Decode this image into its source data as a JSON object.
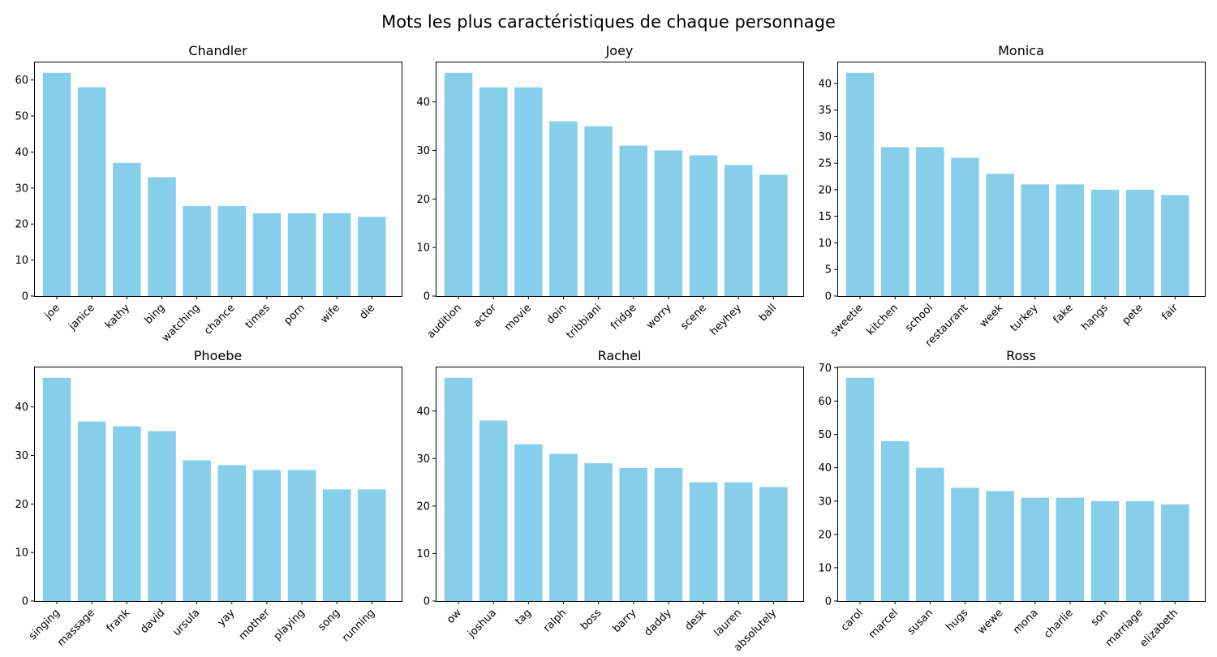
{
  "figure_title": "Mots les plus caractéristiques de chaque personnage",
  "bar_color": "#87CEEB",
  "chart_data": [
    {
      "type": "bar",
      "title": "Chandler",
      "categories": [
        "joe",
        "janice",
        "kathy",
        "bing",
        "watching",
        "chance",
        "times",
        "porn",
        "wife",
        "die"
      ],
      "values": [
        62,
        58,
        37,
        33,
        25,
        25,
        23,
        23,
        23,
        22
      ],
      "ylim": [
        0,
        65.1
      ],
      "yticks": [
        0,
        10,
        20,
        30,
        40,
        50,
        60
      ],
      "xlabel": "",
      "ylabel": "",
      "grid": false
    },
    {
      "type": "bar",
      "title": "Joey",
      "categories": [
        "audition",
        "actor",
        "movie",
        "doin",
        "tribbiani",
        "fridge",
        "worry",
        "scene",
        "heyhey",
        "ball"
      ],
      "values": [
        46,
        43,
        43,
        36,
        35,
        31,
        30,
        29,
        27,
        25
      ],
      "ylim": [
        0,
        48.3
      ],
      "yticks": [
        0,
        10,
        20,
        30,
        40
      ],
      "xlabel": "",
      "ylabel": "",
      "grid": false
    },
    {
      "type": "bar",
      "title": "Monica",
      "categories": [
        "sweetie",
        "kitchen",
        "school",
        "restaurant",
        "week",
        "turkey",
        "fake",
        "hangs",
        "pete",
        "fair"
      ],
      "values": [
        42,
        28,
        28,
        26,
        23,
        21,
        21,
        20,
        20,
        19
      ],
      "ylim": [
        0,
        44.1
      ],
      "yticks": [
        0,
        5,
        10,
        15,
        20,
        25,
        30,
        35,
        40
      ],
      "xlabel": "",
      "ylabel": "",
      "grid": false
    },
    {
      "type": "bar",
      "title": "Phoebe",
      "categories": [
        "singing",
        "massage",
        "frank",
        "david",
        "ursula",
        "yay",
        "mother",
        "playing",
        "song",
        "running"
      ],
      "values": [
        46,
        37,
        36,
        35,
        29,
        28,
        27,
        27,
        23,
        23
      ],
      "ylim": [
        0,
        48.3
      ],
      "yticks": [
        0,
        10,
        20,
        30,
        40
      ],
      "xlabel": "",
      "ylabel": "",
      "grid": false
    },
    {
      "type": "bar",
      "title": "Rachel",
      "categories": [
        "ow",
        "joshua",
        "tag",
        "ralph",
        "boss",
        "barry",
        "daddy",
        "desk",
        "lauren",
        "absolutely"
      ],
      "values": [
        47,
        38,
        33,
        31,
        29,
        28,
        28,
        25,
        25,
        24
      ],
      "ylim": [
        0,
        49.35
      ],
      "yticks": [
        0,
        10,
        20,
        30,
        40
      ],
      "xlabel": "",
      "ylabel": "",
      "grid": false
    },
    {
      "type": "bar",
      "title": "Ross",
      "categories": [
        "carol",
        "marcel",
        "susan",
        "hugs",
        "wewe",
        "mona",
        "charlie",
        "son",
        "marriage",
        "elizabeth"
      ],
      "values": [
        67,
        48,
        40,
        34,
        33,
        31,
        31,
        30,
        30,
        29
      ],
      "ylim": [
        0,
        70.35
      ],
      "yticks": [
        0,
        10,
        20,
        30,
        40,
        50,
        60,
        70
      ],
      "xlabel": "",
      "ylabel": "",
      "grid": false
    }
  ]
}
